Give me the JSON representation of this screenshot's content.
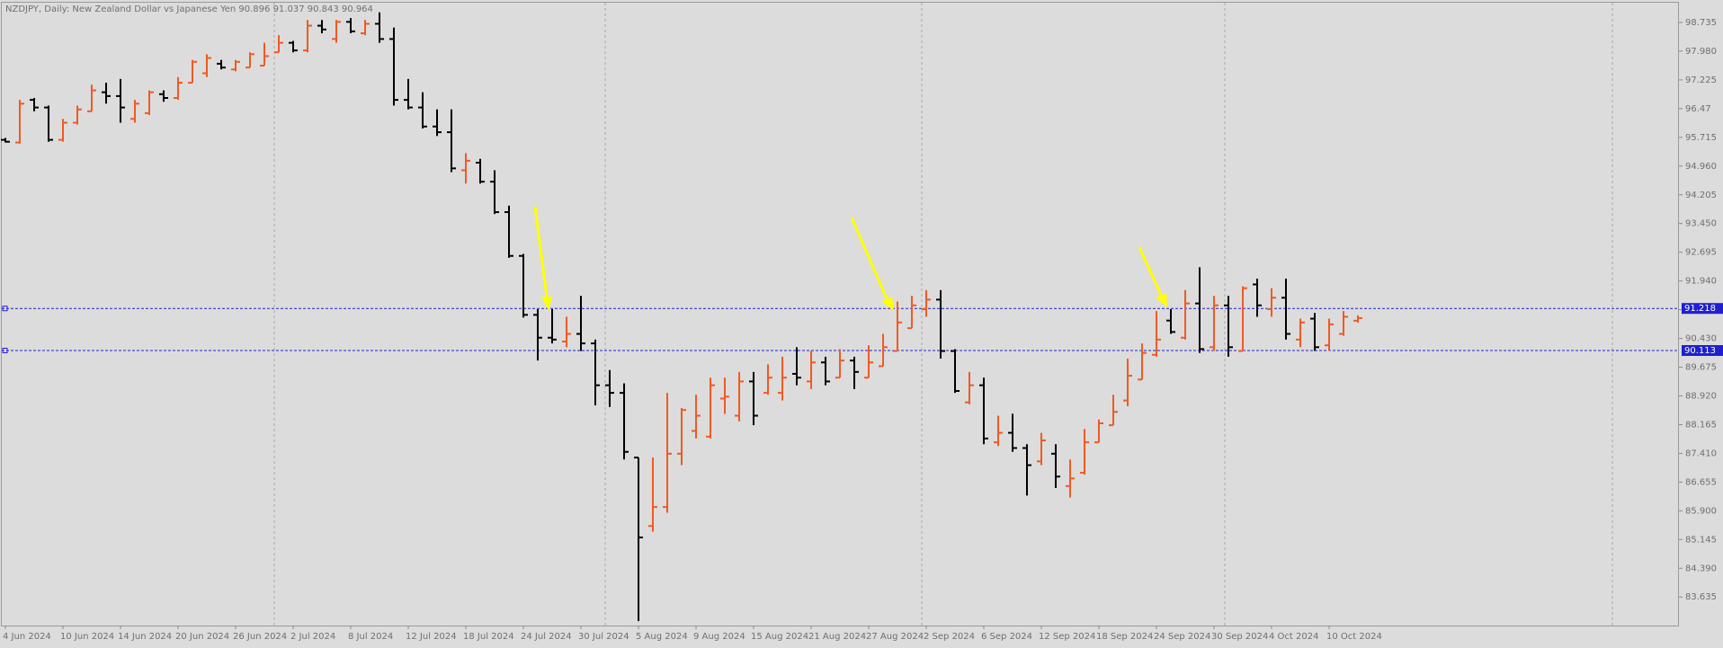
{
  "chart_data": {
    "type": "ohlc",
    "title": "NZDJPY, Daily:  New Zealand Dollar vs Japanese Yen  90.896 91.037 90.843 90.964",
    "up_color": "#f05a22",
    "down_color": "#000000",
    "hline_color": "#1f1fd0",
    "categories": [
      "4 Jun 2024",
      null,
      null,
      null,
      "10 Jun 2024",
      null,
      null,
      null,
      "14 Jun 2024",
      null,
      null,
      null,
      "20 Jun 2024",
      null,
      null,
      null,
      "26 Jun 2024",
      null,
      null,
      null,
      "2 Jul 2024",
      null,
      null,
      null,
      "8 Jul 2024",
      null,
      null,
      null,
      "12 Jul 2024",
      null,
      null,
      null,
      "18 Jul 2024",
      null,
      null,
      null,
      "24 Jul 2024",
      null,
      null,
      null,
      "30 Jul 2024",
      null,
      null,
      null,
      "5 Aug 2024",
      null,
      null,
      null,
      "9 Aug 2024",
      null,
      null,
      null,
      "15 Aug 2024",
      null,
      null,
      null,
      "21 Aug 2024",
      null,
      null,
      null,
      "27 Aug 2024",
      null,
      null,
      null,
      "2 Sep 2024",
      null,
      null,
      null,
      "6 Sep 2024",
      null,
      null,
      null,
      "12 Sep 2024",
      null,
      null,
      null,
      "18 Sep 2024",
      null,
      null,
      null,
      "24 Sep 2024",
      null,
      null,
      null,
      "30 Sep 2024",
      null,
      null,
      null,
      "4 Oct 2024",
      null,
      null,
      null,
      "10 Oct 2024",
      null,
      null
    ],
    "open": [
      95.65,
      95.58,
      96.7,
      96.5,
      95.65,
      96.1,
      96.4,
      96.9,
      96.8,
      96.2,
      96.35,
      96.85,
      96.75,
      97.15,
      97.4,
      97.65,
      97.5,
      97.55,
      97.6,
      97.95,
      98.2,
      98.0,
      98.65,
      98.3,
      98.75,
      98.45,
      98.7,
      98.3,
      96.7,
      96.5,
      96.0,
      95.85,
      94.85,
      95.05,
      94.55,
      93.75,
      92.6,
      91.05,
      90.45,
      90.35,
      90.55,
      90.3,
      89.2,
      89.0,
      87.3,
      85.5,
      86.0,
      87.4,
      88.0,
      87.85,
      88.85,
      88.4,
      89.3,
      89.0,
      89.0,
      89.5,
      89.3,
      89.8,
      89.4,
      89.85,
      89.4,
      89.7,
      90.1,
      90.7,
      91.2,
      91.45,
      90.1,
      88.75,
      89.2,
      87.7,
      87.95,
      87.55,
      87.2,
      87.4,
      86.55,
      86.9,
      87.7,
      88.15,
      88.8,
      89.35,
      90.0,
      90.9,
      90.45,
      91.35,
      90.2,
      91.3,
      90.1,
      91.85,
      91.2,
      91.5,
      90.4,
      90.95,
      90.25,
      90.55,
      90.896
    ],
    "high": [
      95.7,
      96.7,
      96.75,
      96.55,
      96.2,
      96.55,
      97.1,
      97.15,
      97.25,
      96.7,
      96.95,
      96.95,
      97.3,
      97.75,
      97.9,
      97.75,
      97.75,
      97.95,
      98.2,
      98.4,
      98.25,
      98.8,
      98.8,
      98.8,
      98.85,
      98.8,
      99.0,
      98.6,
      97.25,
      96.9,
      96.45,
      96.45,
      95.3,
      95.15,
      94.85,
      93.92,
      92.65,
      91.2,
      91.2,
      91.0,
      91.55,
      90.4,
      89.6,
      89.25,
      87.3,
      87.3,
      89.0,
      88.6,
      88.95,
      89.4,
      89.4,
      89.55,
      89.55,
      89.75,
      89.95,
      90.2,
      90.1,
      89.95,
      90.15,
      89.95,
      90.25,
      90.55,
      91.4,
      91.55,
      91.7,
      91.7,
      90.15,
      89.55,
      89.4,
      88.4,
      88.45,
      87.65,
      87.95,
      87.65,
      87.25,
      88.05,
      88.3,
      88.95,
      89.9,
      90.3,
      91.15,
      91.2,
      91.7,
      92.3,
      91.55,
      91.55,
      91.8,
      92.0,
      91.75,
      92.0,
      90.95,
      91.1,
      90.95,
      91.15,
      91.037
    ],
    "low": [
      95.58,
      95.55,
      96.4,
      95.6,
      95.6,
      96.05,
      96.4,
      96.6,
      96.1,
      96.1,
      96.3,
      96.65,
      96.7,
      97.15,
      97.3,
      97.5,
      97.45,
      97.55,
      97.6,
      97.95,
      97.95,
      97.95,
      98.45,
      98.2,
      98.45,
      98.4,
      98.2,
      96.55,
      96.45,
      95.95,
      95.75,
      94.8,
      94.5,
      94.5,
      93.7,
      92.55,
      90.98,
      89.85,
      90.3,
      90.2,
      90.1,
      88.67,
      88.63,
      87.25,
      83.0,
      85.35,
      85.85,
      87.1,
      87.8,
      87.8,
      88.45,
      88.25,
      88.15,
      88.95,
      88.8,
      89.2,
      89.1,
      89.2,
      89.4,
      89.1,
      89.4,
      89.7,
      90.1,
      90.7,
      91.0,
      89.9,
      89.0,
      88.7,
      87.65,
      87.6,
      87.45,
      86.3,
      87.1,
      86.5,
      86.25,
      86.85,
      87.7,
      88.15,
      88.65,
      89.35,
      89.95,
      90.55,
      90.4,
      90.05,
      90.1,
      89.95,
      90.1,
      91.0,
      91.0,
      90.4,
      90.2,
      90.1,
      90.1,
      90.5,
      90.843
    ],
    "close": [
      95.6,
      96.6,
      96.5,
      95.65,
      96.1,
      96.45,
      96.95,
      96.8,
      96.5,
      96.6,
      96.9,
      96.75,
      97.15,
      97.7,
      97.8,
      97.55,
      97.7,
      97.9,
      97.85,
      98.2,
      98.0,
      98.65,
      98.55,
      98.75,
      98.5,
      98.7,
      98.3,
      96.7,
      96.5,
      96.0,
      95.85,
      94.9,
      95.1,
      94.55,
      93.75,
      92.6,
      91.05,
      90.45,
      90.4,
      90.55,
      90.3,
      89.2,
      89.0,
      87.45,
      85.2,
      86.0,
      87.4,
      88.55,
      88.4,
      89.2,
      88.9,
      89.3,
      88.4,
      89.4,
      89.4,
      89.4,
      89.8,
      89.3,
      89.85,
      89.55,
      89.8,
      90.2,
      90.85,
      91.3,
      91.45,
      90.1,
      89.05,
      89.2,
      87.8,
      87.95,
      87.55,
      87.1,
      87.75,
      86.8,
      86.75,
      87.7,
      88.2,
      88.5,
      89.45,
      90.05,
      90.4,
      90.6,
      91.35,
      90.15,
      91.3,
      90.2,
      91.75,
      91.3,
      91.5,
      90.55,
      90.85,
      90.2,
      90.8,
      91.0,
      90.964
    ],
    "ylim": [
      82.885,
      99.254
    ],
    "yticks": [
      98.735,
      {
        "value": 97.98,
        "label": "97.980"
      },
      97.225,
      96.47,
      95.715,
      {
        "value": 94.96,
        "label": "94.960"
      },
      94.205,
      {
        "value": 93.45,
        "label": "93.450"
      },
      92.695,
      {
        "value": 91.94,
        "label": "91.940"
      },
      91.185,
      {
        "value": 90.43,
        "label": "90.430"
      },
      89.675,
      {
        "value": 88.92,
        "label": "88.920"
      },
      88.165,
      {
        "value": 87.41,
        "label": "87.410"
      },
      86.655,
      {
        "value": 85.9,
        "label": "85.900"
      },
      85.145,
      {
        "value": 84.39,
        "label": "84.390"
      },
      83.635
    ],
    "hlines": [
      91.218,
      90.113
    ],
    "grid": false
  }
}
